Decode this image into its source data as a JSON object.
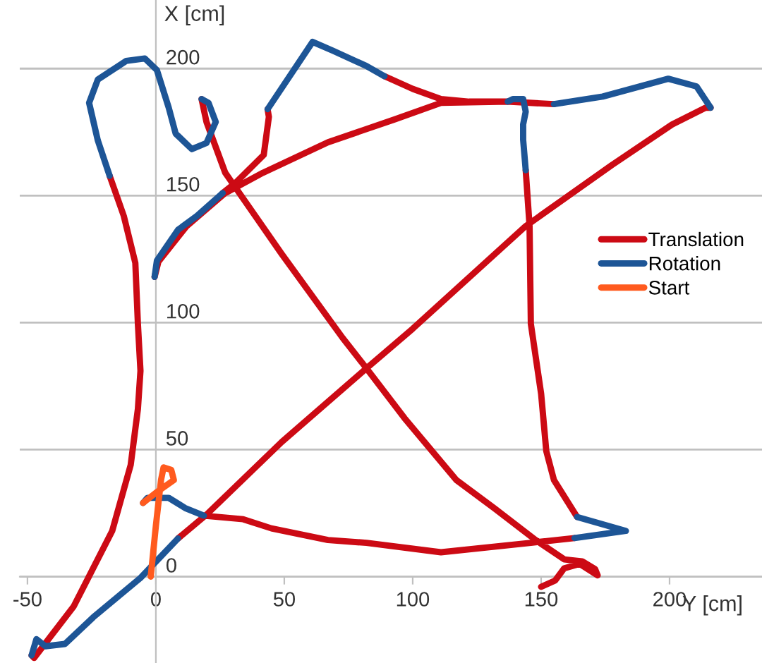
{
  "chart_data": {
    "type": "line",
    "xlabel": "Y [cm]",
    "ylabel": "X [cm]",
    "xlim": [
      -53,
      236
    ],
    "ylim": [
      -34,
      227
    ],
    "xticks": [
      -50,
      0,
      50,
      100,
      150,
      200
    ],
    "yticks": [
      0,
      50,
      100,
      150,
      200
    ],
    "grid": "y",
    "legend": "right",
    "marker": "none",
    "line_style": "solid",
    "series": [
      {
        "name": "Translation",
        "color": "#cc0a14",
        "x": [
          18.7,
          34,
          45,
          67,
          82,
          111,
          146,
          163,
          null,
          164,
          155,
          152,
          150,
          146,
          145.5,
          144,
          null,
          137,
          122,
          111,
          100,
          89,
          null,
          43.5,
          44,
          42,
          31,
          26,
          null,
          -0.5,
          1,
          12,
          27,
          41.7,
          67,
          93,
          111,
          137,
          155,
          null,
          216,
          214,
          201,
          177.5,
          144,
          100,
          82,
          49,
          19.7,
          8.6,
          null,
          -48.4,
          -47.4,
          -32,
          -17,
          -9.8,
          -7,
          -6,
          -7,
          -8,
          -12.5,
          -18,
          null,
          17.8,
          19.7,
          27,
          49,
          72.7,
          82,
          96.8,
          117,
          131.7,
          148,
          159,
          166,
          171,
          172,
          165,
          159,
          155.5,
          150
        ],
        "values": [
          24,
          22.6,
          19,
          14.4,
          13.3,
          9.6,
          13.3,
          15.2,
          null,
          23.5,
          38,
          49.5,
          72,
          99.5,
          138,
          160,
          null,
          187,
          187,
          188,
          192,
          197,
          null,
          184,
          181,
          166,
          155,
          151,
          null,
          118,
          124,
          138,
          151,
          159,
          171,
          180,
          186.5,
          187,
          186,
          null,
          184.6,
          184.6,
          178,
          162,
          138,
          97.6,
          82,
          53,
          24.4,
          15,
          null,
          -31,
          -32,
          -11.7,
          18,
          44,
          66,
          81,
          99.5,
          123.5,
          142,
          157.8,
          null,
          188,
          179,
          159,
          127,
          94,
          82,
          62.4,
          38,
          27,
          14.3,
          6.8,
          6,
          3,
          0.5,
          5,
          3.3,
          -1.5,
          -4
        ]
      },
      {
        "name": "Rotation",
        "color": "#1d5596",
        "x": [
          -5,
          -3.3,
          5,
          11.4,
          18.7,
          null,
          163,
          183,
          164,
          null,
          144,
          143,
          143,
          144,
          143,
          139,
          137,
          null,
          89,
          82,
          69,
          61,
          43.5,
          null,
          26,
          16,
          8.6,
          0.4,
          -0.5,
          null,
          155,
          174,
          199.5,
          210.5,
          216,
          null,
          8.6,
          -6,
          -24.4,
          -35.4,
          -43,
          -46.5,
          -48.4,
          null,
          -18,
          -22.6,
          -26,
          -22.6,
          -11.6,
          -4.3,
          0.4,
          5,
          7.7,
          14,
          19.7,
          23.3,
          20.5,
          17.8
        ],
        "values": [
          29,
          31,
          31,
          27,
          24,
          null,
          15.2,
          18,
          23.5,
          null,
          160,
          172,
          178,
          183,
          188,
          188,
          187,
          null,
          197,
          201,
          207,
          210.5,
          184,
          null,
          151,
          142,
          136.5,
          124.4,
          118,
          null,
          186,
          189,
          196,
          193,
          184.6,
          null,
          15,
          -0.5,
          -16,
          -26.5,
          -27.4,
          -24.6,
          -31,
          null,
          157.8,
          171.7,
          186.5,
          195.7,
          203,
          204,
          199.4,
          184.6,
          174.4,
          168.3,
          170.7,
          179,
          186.5,
          188
        ]
      },
      {
        "name": "Start",
        "color": "#ff5a1e",
        "x": [
          -2,
          0,
          2,
          3,
          6,
          7,
          0,
          -5
        ],
        "values": [
          0,
          20,
          38,
          43,
          42,
          38,
          33,
          29
        ]
      }
    ]
  }
}
